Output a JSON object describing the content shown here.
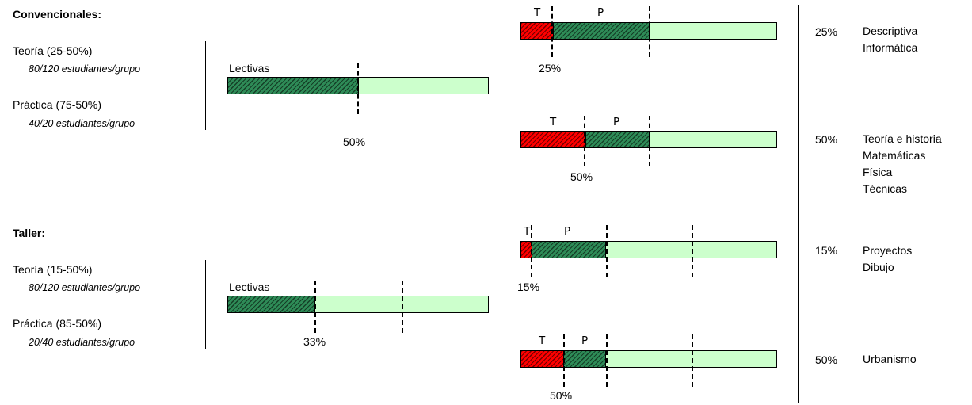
{
  "convencionales": {
    "title": "Convencionales:",
    "teoria": "Teoría (25-50%)",
    "teoria_sub": "80/120 estudiantes/grupo",
    "practica": "Práctica (75-50%)",
    "practica_sub": "40/20 estudiantes/grupo",
    "lectivas_label": "Lectivas",
    "lectivas_pct": "50%",
    "lectivas_fill": 0.5,
    "rows": [
      {
        "t": "T",
        "p": "P",
        "pct": "25%",
        "pct_right": "25%",
        "theory_fill": 0.125,
        "practice_fill": 0.5,
        "subjects": [
          "Descriptiva",
          "Informática"
        ]
      },
      {
        "t": "T",
        "p": "P",
        "pct": "50%",
        "pct_right": "50%",
        "theory_fill": 0.25,
        "practice_fill": 0.5,
        "subjects": [
          "Teoría e historia",
          "Matemáticas",
          "Física",
          "Técnicas"
        ]
      }
    ]
  },
  "taller": {
    "title": "Taller:",
    "teoria": "Teoría (15-50%)",
    "teoria_sub": "80/120 estudiantes/grupo",
    "practica": "Práctica (85-50%)",
    "practica_sub": "20/40 estudiantes/grupo",
    "lectivas_label": "Lectivas",
    "lectivas_pct": "33%",
    "lectivas_fill": 0.33,
    "rows": [
      {
        "t": "T",
        "p": "P",
        "pct": "15%",
        "pct_right": "15%",
        "theory_fill": 0.05,
        "practice_fill": 0.33,
        "subjects": [
          "Proyectos",
          "Dibujo"
        ]
      },
      {
        "t": "T",
        "p": "P",
        "pct": "50%",
        "pct_right": "50%",
        "theory_fill": 0.165,
        "practice_fill": 0.33,
        "subjects": [
          "Urbanismo"
        ]
      }
    ]
  },
  "colors": {
    "theory": "#ff0000",
    "practice": "#2e8b57",
    "remainder": "#ccffcc"
  }
}
